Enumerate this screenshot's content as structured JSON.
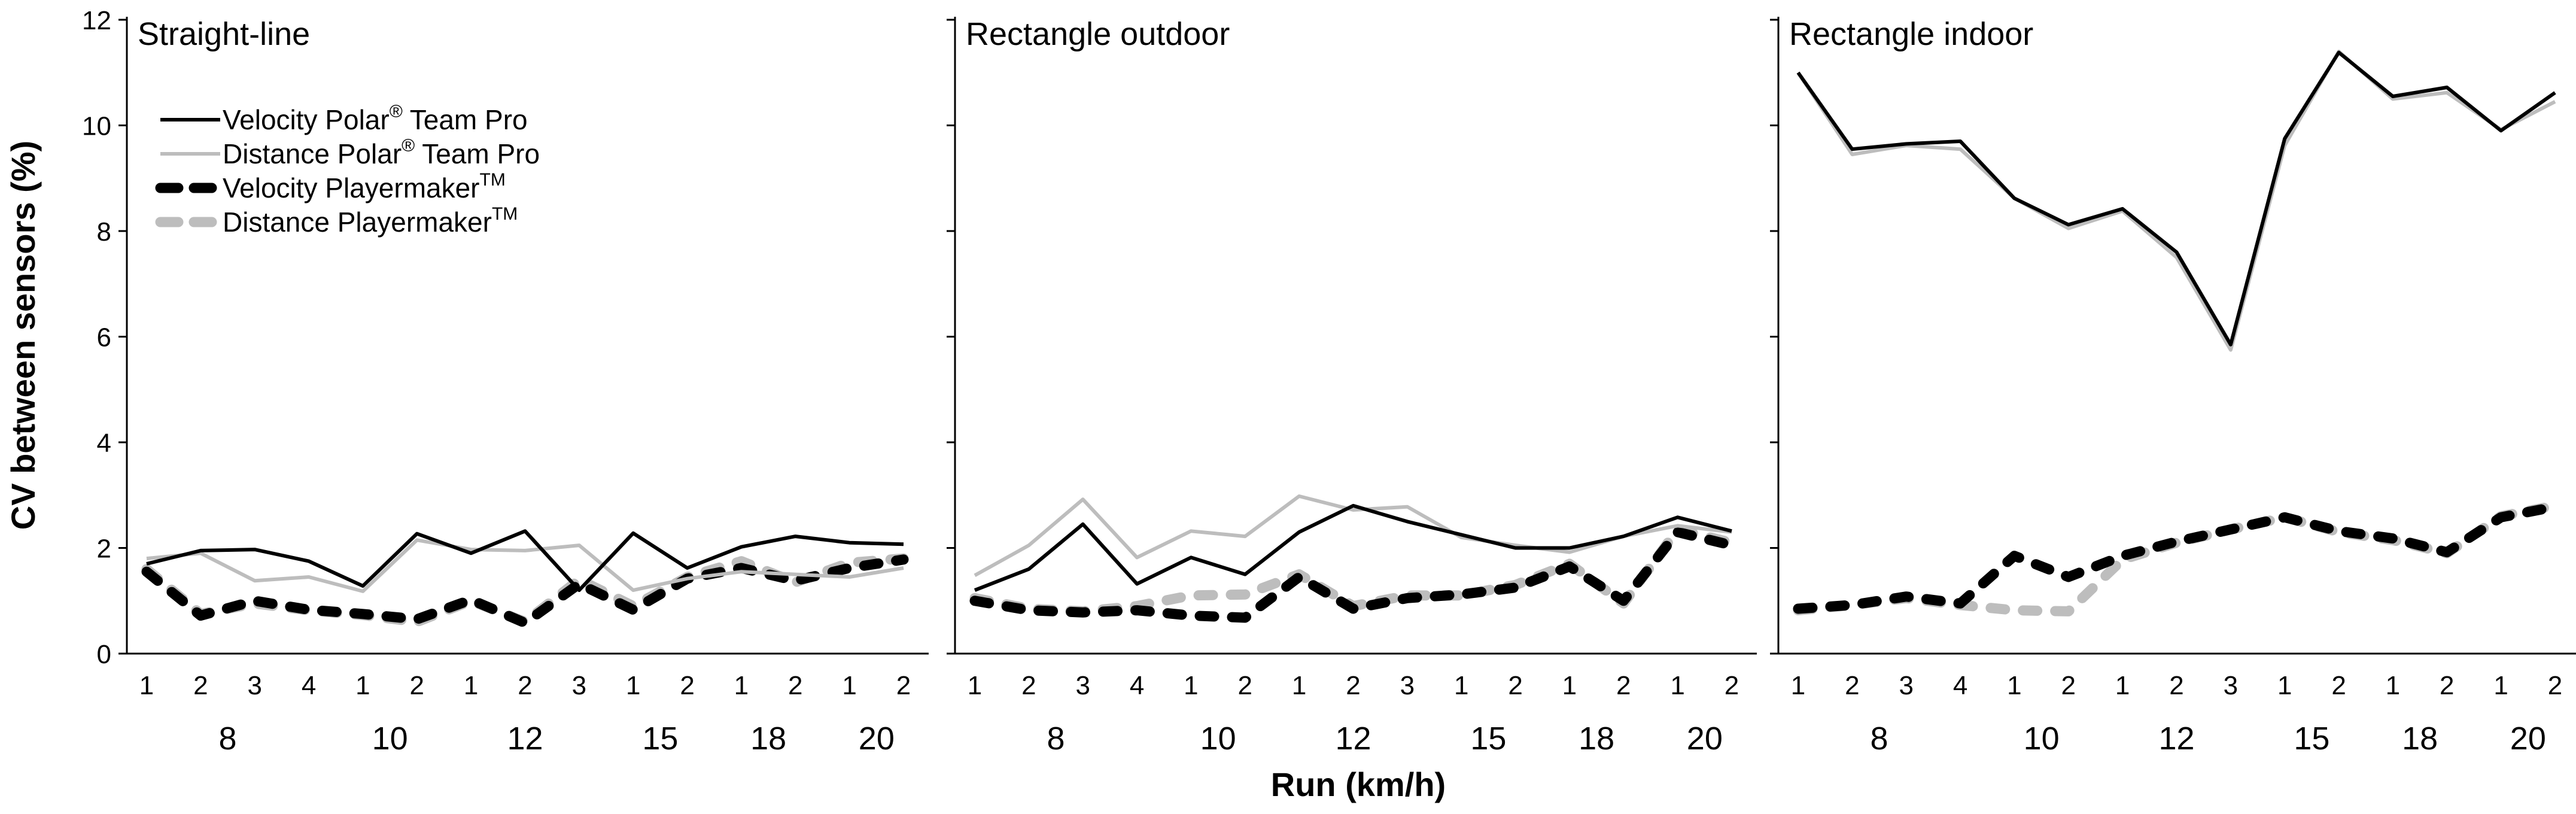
{
  "figure": {
    "ylabel": "CV between sensors (%)",
    "xlabel": "Run (km/h)",
    "yticks": [
      "0",
      "2",
      "4",
      "6",
      "8",
      "10",
      "12"
    ]
  },
  "legend": {
    "placement": "top-left of first panel",
    "items": [
      {
        "series": "vel_polar",
        "label_main": "Velocity Polar",
        "label_sup": "®",
        "label_tail": " Team Pro"
      },
      {
        "series": "dist_polar",
        "label_main": "Distance Polar",
        "label_sup": "®",
        "label_tail": " Team Pro"
      },
      {
        "series": "vel_pm",
        "label_main": "Velocity Playermaker",
        "label_sup": "TM",
        "label_tail": ""
      },
      {
        "series": "dist_pm",
        "label_main": "Distance Playermaker",
        "label_sup": "TM",
        "label_tail": ""
      }
    ]
  },
  "styles": {
    "vel_polar": {
      "color": "#000000",
      "dashed": false
    },
    "dist_polar": {
      "color": "#bdbdbd",
      "dashed": false
    },
    "vel_pm": {
      "color": "#000000",
      "dashed": true
    },
    "dist_pm": {
      "color": "#bdbdbd",
      "dashed": true
    }
  },
  "chart_data": [
    {
      "type": "line",
      "title": "Straight-line",
      "ylim": [
        0,
        12
      ],
      "runs": [
        "1",
        "2",
        "3",
        "4",
        "1",
        "2",
        "1",
        "2",
        "3",
        "1",
        "2",
        "1",
        "2",
        "1",
        "2"
      ],
      "speed_groups": [
        {
          "label": "8",
          "start": 0,
          "end": 3
        },
        {
          "label": "10",
          "start": 4,
          "end": 5
        },
        {
          "label": "12",
          "start": 6,
          "end": 8
        },
        {
          "label": "15",
          "start": 9,
          "end": 10
        },
        {
          "label": "18",
          "start": 11,
          "end": 12
        },
        {
          "label": "20",
          "start": 13,
          "end": 14
        }
      ],
      "series": [
        {
          "key": "vel_polar",
          "name": "Velocity Polar® Team Pro",
          "values": [
            1.7,
            1.95,
            1.97,
            1.75,
            1.28,
            2.27,
            1.9,
            2.32,
            1.2,
            2.28,
            1.62,
            2.02,
            2.22,
            2.1,
            2.07
          ]
        },
        {
          "key": "dist_polar",
          "name": "Distance Polar® Team Pro",
          "values": [
            1.8,
            1.9,
            1.38,
            1.45,
            1.18,
            2.15,
            1.97,
            1.95,
            2.05,
            1.2,
            1.42,
            1.55,
            1.5,
            1.45,
            1.62
          ]
        },
        {
          "key": "vel_pm",
          "name": "Velocity Playermaker™",
          "values": [
            1.55,
            0.72,
            1.0,
            0.83,
            0.75,
            0.65,
            1.02,
            0.58,
            1.32,
            0.83,
            1.42,
            1.62,
            1.38,
            1.62,
            1.78
          ]
        },
        {
          "key": "dist_pm",
          "name": "Distance Playermaker™",
          "values": [
            1.6,
            0.75,
            0.95,
            0.82,
            0.73,
            0.6,
            1.0,
            0.6,
            1.4,
            0.9,
            1.45,
            1.75,
            1.35,
            1.72,
            1.8
          ]
        }
      ]
    },
    {
      "type": "line",
      "title": "Rectangle outdoor",
      "ylim": [
        0,
        12
      ],
      "runs": [
        "1",
        "2",
        "3",
        "4",
        "1",
        "2",
        "1",
        "2",
        "3",
        "1",
        "2",
        "1",
        "2",
        "1",
        "2"
      ],
      "speed_groups": [
        {
          "label": "8",
          "start": 0,
          "end": 3
        },
        {
          "label": "10",
          "start": 4,
          "end": 5
        },
        {
          "label": "12",
          "start": 6,
          "end": 8
        },
        {
          "label": "15",
          "start": 9,
          "end": 10
        },
        {
          "label": "18",
          "start": 11,
          "end": 12
        },
        {
          "label": "20",
          "start": 13,
          "end": 14
        }
      ],
      "series": [
        {
          "key": "vel_polar",
          "name": "Velocity Polar® Team Pro",
          "values": [
            1.2,
            1.6,
            2.45,
            1.32,
            1.82,
            1.5,
            2.3,
            2.8,
            2.5,
            2.25,
            2.0,
            2.0,
            2.22,
            2.58,
            2.32
          ]
        },
        {
          "key": "dist_polar",
          "name": "Distance Polar® Team Pro",
          "values": [
            1.48,
            2.05,
            2.92,
            1.82,
            2.32,
            2.22,
            2.98,
            2.72,
            2.78,
            2.2,
            2.05,
            1.92,
            2.22,
            2.42,
            2.3
          ]
        },
        {
          "key": "vel_pm",
          "name": "Velocity Playermaker™",
          "values": [
            1.0,
            0.82,
            0.78,
            0.82,
            0.72,
            0.68,
            1.45,
            0.85,
            1.05,
            1.12,
            1.25,
            1.65,
            1.0,
            2.3,
            2.05
          ]
        },
        {
          "key": "dist_pm",
          "name": "Distance Playermaker™",
          "values": [
            1.05,
            0.85,
            0.8,
            0.9,
            1.1,
            1.12,
            1.5,
            0.9,
            1.1,
            1.1,
            1.3,
            1.7,
            0.95,
            2.35,
            2.1
          ]
        }
      ]
    },
    {
      "type": "line",
      "title": "Rectangle indoor",
      "ylim": [
        0,
        12
      ],
      "runs": [
        "1",
        "2",
        "3",
        "4",
        "1",
        "2",
        "1",
        "2",
        "3",
        "1",
        "2",
        "1",
        "2",
        "1",
        "2"
      ],
      "speed_groups": [
        {
          "label": "8",
          "start": 0,
          "end": 3
        },
        {
          "label": "10",
          "start": 4,
          "end": 5
        },
        {
          "label": "12",
          "start": 6,
          "end": 8
        },
        {
          "label": "15",
          "start": 9,
          "end": 10
        },
        {
          "label": "18",
          "start": 11,
          "end": 12
        },
        {
          "label": "20",
          "start": 13,
          "end": 14
        }
      ],
      "series": [
        {
          "key": "vel_polar",
          "name": "Velocity Polar® Team Pro",
          "values": [
            11.0,
            9.55,
            9.65,
            9.7,
            8.62,
            8.12,
            8.42,
            7.6,
            5.85,
            9.75,
            11.38,
            10.55,
            10.72,
            9.9,
            10.62
          ]
        },
        {
          "key": "dist_polar",
          "name": "Distance Polar® Team Pro",
          "values": [
            11.0,
            9.45,
            9.62,
            9.55,
            8.62,
            8.05,
            8.38,
            7.5,
            5.75,
            9.62,
            11.4,
            10.5,
            10.62,
            9.92,
            10.45
          ]
        },
        {
          "key": "vel_pm",
          "name": "Velocity Playermaker™",
          "values": [
            0.85,
            0.92,
            1.08,
            0.95,
            1.85,
            1.45,
            1.85,
            2.12,
            2.35,
            2.58,
            2.32,
            2.18,
            1.92,
            2.58,
            2.78
          ]
        },
        {
          "key": "dist_pm",
          "name": "Distance Playermaker™",
          "values": [
            0.82,
            0.92,
            1.05,
            0.92,
            0.82,
            0.8,
            1.78,
            2.1,
            2.35,
            2.58,
            2.3,
            2.15,
            1.9,
            2.6,
            2.8
          ]
        }
      ]
    }
  ]
}
